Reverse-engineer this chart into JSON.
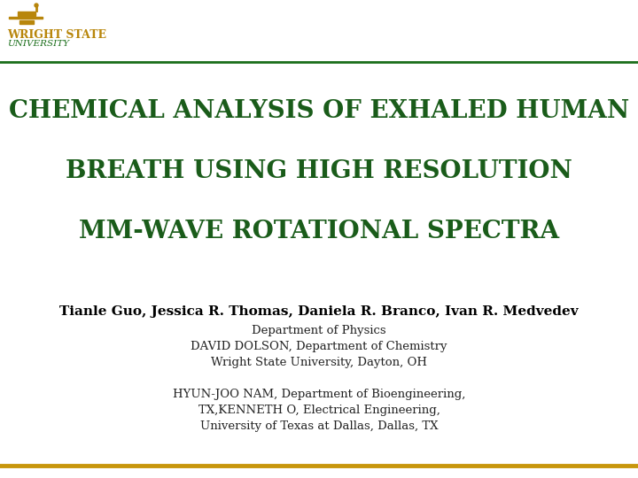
{
  "bg_color": "#ffffff",
  "dark_green": "#1a5c1a",
  "gold": "#b8860b",
  "header_line_color": "#1a6e1a",
  "footer_line_color": "#c8960c",
  "title_lines": [
    "CHEMICAL ANALYSIS OF EXHALED HUMAN",
    "BREATH USING HIGH RESOLUTION",
    "MM-WAVE ROTATIONAL SPECTRA"
  ],
  "title_color": "#1a5c1a",
  "title_fontsize": 20,
  "authors_bold": "Tianle Guo, Jessica R. Thomas, Daniela R. Branco, Ivan R. Medvedev",
  "authors_bold_fontsize": 11,
  "affil1_lines": [
    "Department of Physics",
    "DAVID DOLSON, Department of Chemistry",
    "Wright State University, Dayton, OH"
  ],
  "affil2_lines": [
    "HYUN-JOO NAM, Department of Bioengineering,",
    "TX,KENNETH O, Electrical Engineering,",
    "University of Texas at Dallas, Dallas, TX"
  ],
  "affil_fontsize": 9.5,
  "affil_color": "#222222",
  "logo_gold": "#b8860b",
  "logo_green": "#1a6e1a",
  "logo_wsu": "WRIGHT STATE",
  "logo_univ": "UNIVERSITY",
  "logo_fontsize_wsu": 9,
  "logo_fontsize_univ": 7.5
}
